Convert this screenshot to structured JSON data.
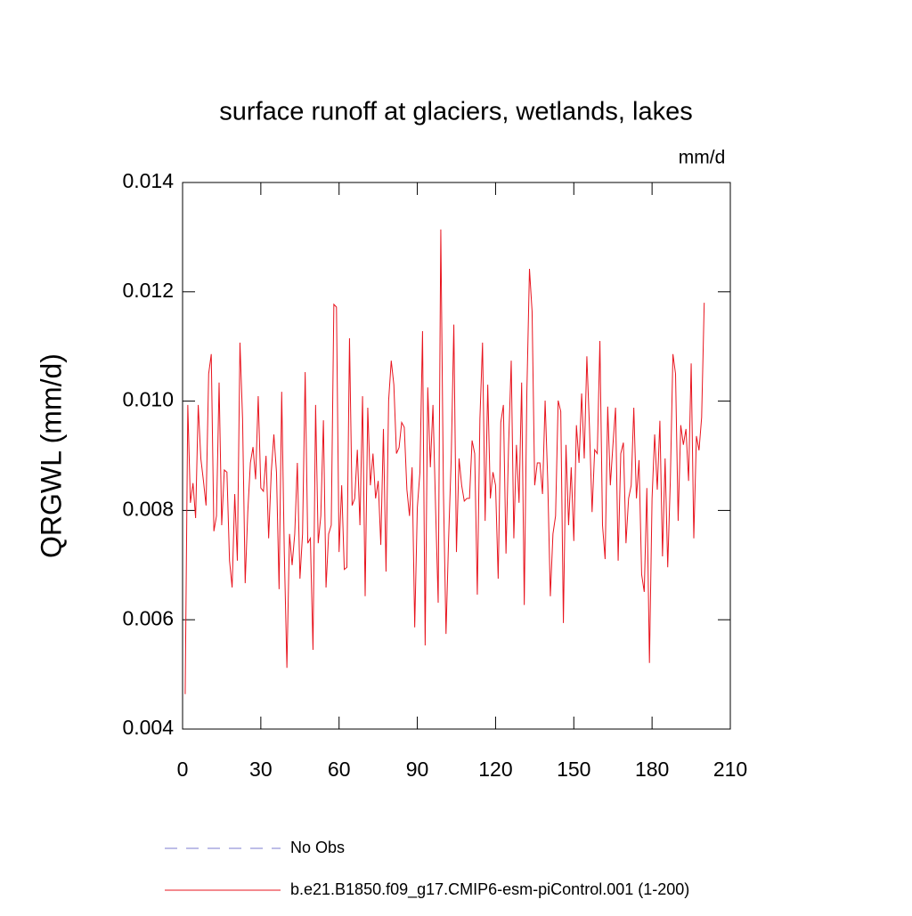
{
  "chart_data": {
    "type": "line",
    "title": "surface runoff at glaciers, wetlands, lakes",
    "units": "mm/d",
    "y_label": "QRGWL  (mm/d)",
    "xlim": [
      0,
      210
    ],
    "xticks": [
      0,
      30,
      60,
      90,
      120,
      150,
      180,
      210
    ],
    "ylim": [
      0.004,
      0.014
    ],
    "yticks": [
      0.004,
      0.006,
      0.008,
      {
        "value": 0.01,
        "label": "0.010"
      },
      0.012,
      0.014
    ],
    "reference_lines": [
      {
        "name": "No Obs",
        "color": "#7b7bd0",
        "dashed": true
      }
    ],
    "x": [
      1,
      2,
      3,
      4,
      5,
      6,
      7,
      8,
      9,
      10,
      11,
      12,
      13,
      14,
      15,
      16,
      17,
      18,
      19,
      20,
      21,
      22,
      23,
      24,
      25,
      26,
      27,
      28,
      29,
      30,
      31,
      32,
      33,
      34,
      35,
      36,
      37,
      38,
      39,
      40,
      41,
      42,
      43,
      44,
      45,
      46,
      47,
      48,
      49,
      50,
      51,
      52,
      53,
      54,
      55,
      56,
      57,
      58,
      59,
      60,
      61,
      62,
      63,
      64,
      65,
      66,
      67,
      68,
      69,
      70,
      71,
      72,
      73,
      74,
      75,
      76,
      77,
      78,
      79,
      80,
      81,
      82,
      83,
      84,
      85,
      86,
      87,
      88,
      89,
      90,
      91,
      92,
      93,
      94,
      95,
      96,
      97,
      98,
      99,
      100,
      101,
      102,
      103,
      104,
      105,
      106,
      107,
      108,
      109,
      110,
      111,
      112,
      113,
      114,
      115,
      116,
      117,
      118,
      119,
      120,
      121,
      122,
      123,
      124,
      125,
      126,
      127,
      128,
      129,
      130,
      131,
      132,
      133,
      134,
      135,
      136,
      137,
      138,
      139,
      140,
      141,
      142,
      143,
      144,
      145,
      146,
      147,
      148,
      149,
      150,
      151,
      152,
      153,
      154,
      155,
      156,
      157,
      158,
      159,
      160,
      161,
      162,
      163,
      164,
      165,
      166,
      167,
      168,
      169,
      170,
      171,
      172,
      173,
      174,
      175,
      176,
      177,
      178,
      179,
      180,
      181,
      182,
      183,
      184,
      185,
      186,
      187,
      188,
      189,
      190,
      191,
      192,
      193,
      194,
      195,
      196,
      197,
      198,
      199,
      200
    ],
    "series": [
      {
        "name": "b.e21.B1850.f09_g17.CMIP6-esm-piControl.001 (1-200)",
        "color": "#e8141e",
        "values": [
          0.00464,
          0.00993,
          0.00814,
          0.0085,
          0.00786,
          0.00993,
          0.00895,
          0.00854,
          0.00809,
          0.0105,
          0.01086,
          0.00762,
          0.0079,
          0.01034,
          0.00773,
          0.00874,
          0.0087,
          0.00708,
          0.00659,
          0.0083,
          0.00708,
          0.01107,
          0.00968,
          0.00667,
          0.00797,
          0.00887,
          0.00916,
          0.00857,
          0.01009,
          0.00841,
          0.00835,
          0.009,
          0.00749,
          0.0087,
          0.00939,
          0.0087,
          0.00656,
          0.01017,
          0.00724,
          0.00512,
          0.00757,
          0.007,
          0.00757,
          0.00887,
          0.00675,
          0.00757,
          0.01053,
          0.0074,
          0.00749,
          0.00545,
          0.00993,
          0.0074,
          0.0079,
          0.00965,
          0.00659,
          0.00757,
          0.00773,
          0.01177,
          0.01172,
          0.00724,
          0.00846,
          0.00692,
          0.00696,
          0.01115,
          0.00809,
          0.00822,
          0.00911,
          0.00773,
          0.01009,
          0.00643,
          0.00988,
          0.00846,
          0.00904,
          0.00822,
          0.00854,
          0.00737,
          0.00949,
          0.00688,
          0.01001,
          0.01074,
          0.0103,
          0.00904,
          0.00915,
          0.00961,
          0.00952,
          0.00838,
          0.0079,
          0.00879,
          0.00586,
          0.00805,
          0.0087,
          0.01128,
          0.00553,
          0.01025,
          0.00879,
          0.00993,
          0.00805,
          0.00631,
          0.01314,
          0.00838,
          0.00574,
          0.00749,
          0.00895,
          0.0114,
          0.00724,
          0.00895,
          0.00846,
          0.00817,
          0.00822,
          0.00822,
          0.00928,
          0.00904,
          0.00646,
          0.00968,
          0.01107,
          0.00781,
          0.0103,
          0.00822,
          0.0087,
          0.00846,
          0.00675,
          0.00961,
          0.00993,
          0.00721,
          0.0092,
          0.01074,
          0.00749,
          0.0092,
          0.00814,
          0.01034,
          0.00627,
          0.01017,
          0.01242,
          0.01164,
          0.00846,
          0.00887,
          0.00887,
          0.0083,
          0.01001,
          0.00854,
          0.00643,
          0.00757,
          0.0079,
          0.01001,
          0.00981,
          0.00594,
          0.0092,
          0.00773,
          0.00879,
          0.00744,
          0.00956,
          0.00887,
          0.01014,
          0.00895,
          0.01082,
          0.00952,
          0.00797,
          0.00911,
          0.00904,
          0.0111,
          0.00773,
          0.00711,
          0.0099,
          0.00846,
          0.0092,
          0.00988,
          0.00708,
          0.00904,
          0.00924,
          0.0074,
          0.00822,
          0.00846,
          0.00988,
          0.00822,
          0.00892,
          0.00683,
          0.00651,
          0.00841,
          0.00521,
          0.00822,
          0.00939,
          0.00838,
          0.00964,
          0.00716,
          0.00895,
          0.00696,
          0.00854,
          0.01086,
          0.0105,
          0.00781,
          0.00956,
          0.0092,
          0.00949,
          0.00854,
          0.01069,
          0.00749,
          0.00936,
          0.0091,
          0.0097,
          0.0118
        ]
      }
    ]
  }
}
